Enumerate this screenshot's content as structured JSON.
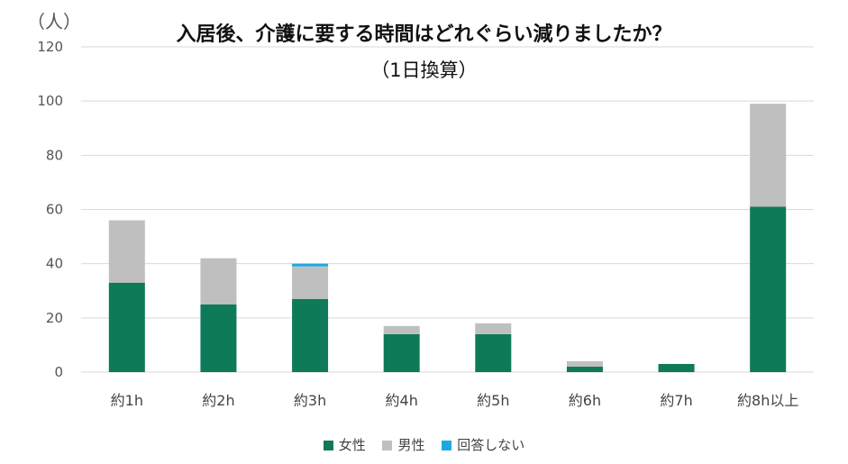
{
  "chart_data": {
    "type": "bar",
    "stacked": true,
    "title": "入居後、介護に要する時間はどれぐらい減りましたか？",
    "subtitle": "（1日換算）",
    "ylabel": "（人）",
    "ylim": [
      0,
      120
    ],
    "yticks": [
      0,
      20,
      40,
      60,
      80,
      100,
      120
    ],
    "categories": [
      "約1h",
      "約2h",
      "約3h",
      "約4h",
      "約5h",
      "約6h",
      "約7h",
      "約8h以上"
    ],
    "series": [
      {
        "name": "女性",
        "color": "#0e7a59",
        "values": [
          33,
          25,
          27,
          14,
          14,
          2,
          3,
          61
        ]
      },
      {
        "name": "男性",
        "color": "#bfbfbf",
        "values": [
          23,
          17,
          12,
          3,
          4,
          2,
          0,
          38
        ]
      },
      {
        "name": "回答しない",
        "color": "#1fa8e0",
        "values": [
          0,
          0,
          1,
          0,
          0,
          0,
          0,
          0
        ]
      }
    ],
    "grid": true,
    "legend_position": "bottom"
  }
}
